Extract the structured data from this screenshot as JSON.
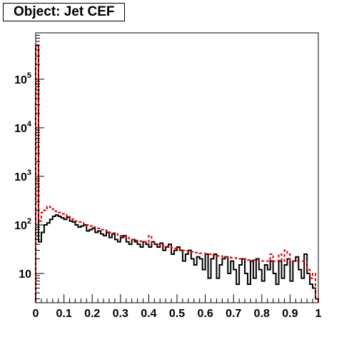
{
  "chart_data": {
    "type": "histogram",
    "title": "Object: Jet CEF",
    "xlabel": "",
    "ylabel": "",
    "xlim": [
      0,
      1
    ],
    "ylim": [
      2.5,
      900000
    ],
    "ylog": true,
    "grid": false,
    "legend": "none",
    "x_ticks": [
      {
        "value": 0,
        "label": "0"
      },
      {
        "value": 0.1,
        "label": "0.1"
      },
      {
        "value": 0.2,
        "label": "0.2"
      },
      {
        "value": 0.3,
        "label": "0.3"
      },
      {
        "value": 0.4,
        "label": "0.4"
      },
      {
        "value": 0.5,
        "label": "0.5"
      },
      {
        "value": 0.6,
        "label": "0.6"
      },
      {
        "value": 0.7,
        "label": "0.7"
      },
      {
        "value": 0.8,
        "label": "0.8"
      },
      {
        "value": 0.9,
        "label": "0.9"
      },
      {
        "value": 1,
        "label": "1"
      }
    ],
    "y_ticks": [
      {
        "value": 10,
        "base": "10",
        "exp": ""
      },
      {
        "value": 100,
        "base": "10",
        "exp": "2"
      },
      {
        "value": 1000,
        "base": "10",
        "exp": "3"
      },
      {
        "value": 10000,
        "base": "10",
        "exp": "4"
      },
      {
        "value": 100000,
        "base": "10",
        "exp": "5"
      }
    ],
    "bin_width": 0.01,
    "series": [
      {
        "style": "solid",
        "color": "#000000",
        "values": [
          500000,
          45,
          70,
          100,
          110,
          130,
          150,
          160,
          150,
          140,
          130,
          145,
          120,
          115,
          100,
          90,
          95,
          100,
          75,
          80,
          85,
          70,
          75,
          65,
          60,
          70,
          55,
          65,
          50,
          45,
          55,
          60,
          45,
          40,
          50,
          45,
          40,
          35,
          45,
          40,
          35,
          45,
          40,
          35,
          42,
          30,
          35,
          40,
          25,
          30,
          35,
          30,
          18,
          25,
          30,
          20,
          15,
          22,
          20,
          12,
          25,
          8,
          20,
          25,
          8,
          15,
          20,
          22,
          10,
          18,
          12,
          6,
          15,
          20,
          10,
          6,
          18,
          8,
          20,
          12,
          7,
          15,
          12,
          18,
          10,
          6,
          18,
          8,
          15,
          20,
          7,
          18,
          22,
          12,
          8,
          25,
          10,
          6,
          5,
          3
        ]
      },
      {
        "style": "dashed",
        "color": "#e00000",
        "values": [
          480000,
          120,
          180,
          200,
          240,
          230,
          210,
          190,
          180,
          170,
          160,
          150,
          140,
          130,
          120,
          115,
          110,
          105,
          100,
          95,
          90,
          88,
          85,
          80,
          78,
          75,
          70,
          68,
          65,
          62,
          60,
          58,
          55,
          52,
          50,
          48,
          47,
          46,
          45,
          44,
          60,
          42,
          41,
          40,
          38,
          37,
          36,
          35,
          34,
          33,
          32,
          31,
          30,
          29,
          28,
          28,
          27,
          27,
          26,
          26,
          25,
          25,
          24,
          24,
          23,
          23,
          22,
          22,
          22,
          21,
          21,
          20,
          20,
          20,
          20,
          19,
          19,
          19,
          19,
          18,
          18,
          18,
          18,
          25,
          18,
          18,
          25,
          18,
          30,
          25,
          18,
          18,
          18,
          18,
          18,
          18,
          12,
          8,
          10,
          3
        ]
      }
    ]
  }
}
